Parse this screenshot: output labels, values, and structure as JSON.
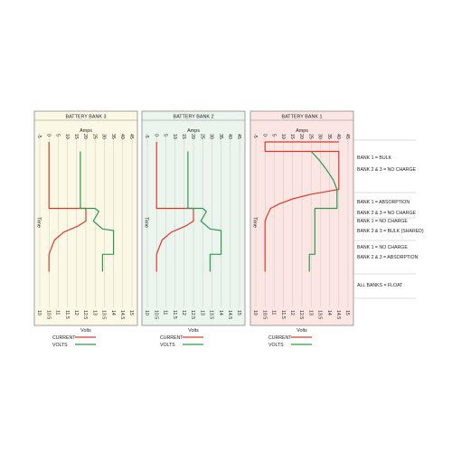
{
  "colors": {
    "current": "#d93b2b",
    "volts": "#2e9a4e",
    "bank3_bg": "#fbf9e6",
    "bank2_bg": "#ebf5ee",
    "bank1_bg": "#fbe6e4",
    "frame": "#8a8a8a",
    "grid": "#c9c9c9",
    "divider": "#bcbcbc"
  },
  "chart_data": {
    "type": "line",
    "x_top_label": "Amps",
    "x_bottom_label": "Volts",
    "y_label": "Time",
    "amps_ticks": [
      "-5",
      "0",
      "5",
      "10",
      "15",
      "20",
      "25",
      "30",
      "35",
      "40",
      "45"
    ],
    "volts_ticks": [
      "10",
      "10.5",
      "11",
      "11.5",
      "12",
      "12.5",
      "13",
      "13.5",
      "14",
      "14.5",
      "15"
    ],
    "amps_range": [
      -5,
      45
    ],
    "volts_range": [
      10,
      15
    ],
    "time_axis": "downward",
    "legend": [
      {
        "key": "current",
        "label": "CURRENT"
      },
      {
        "key": "volts",
        "label": "VOLTS"
      }
    ],
    "phases": [
      {
        "labels": [
          "BANK 1 = BULK",
          "BANK 2 & 3 = NO CHARGE"
        ]
      },
      {
        "labels": [
          "BANK 1 = ABSORPTION",
          "BANK 2 & 3 = NO CHARGE"
        ]
      },
      {
        "labels": [
          "BANK 1 = NO CHARGE",
          "BANK 2 & 3 = BULK (SHARED)"
        ]
      },
      {
        "labels": [
          "BANK 1 = NO CHARGE",
          "BANK 2 & 3 = ABSORPTION"
        ]
      },
      {
        "labels": [
          "ALL BANKS = FLOAT"
        ]
      }
    ],
    "panels": [
      {
        "title": "BATTERY BANK 3",
        "bg": "bank3_bg",
        "series": [
          {
            "key": "current",
            "points": [
              [
                0,
                0.0
              ],
              [
                0,
                0.42
              ],
              [
                20,
                0.42
              ],
              [
                20,
                0.5
              ],
              [
                16,
                0.53
              ],
              [
                8,
                0.57
              ],
              [
                3,
                0.62
              ],
              [
                1,
                0.68
              ],
              [
                0,
                0.71
              ],
              [
                0,
                0.82
              ]
            ]
          },
          {
            "key": "volts",
            "points": [
              [
                12.2,
                0.06
              ],
              [
                12.2,
                0.42
              ],
              [
                13.0,
                0.42
              ],
              [
                13.2,
                0.44
              ],
              [
                12.9,
                0.5
              ],
              [
                13.4,
                0.55
              ],
              [
                14.0,
                0.56
              ],
              [
                14.0,
                0.71
              ],
              [
                13.4,
                0.71
              ],
              [
                13.4,
                0.82
              ]
            ]
          }
        ]
      },
      {
        "title": "BATTERY BANK 2",
        "bg": "bank2_bg",
        "series": [
          {
            "key": "current",
            "points": [
              [
                0,
                0.0
              ],
              [
                0,
                0.42
              ],
              [
                20,
                0.42
              ],
              [
                20,
                0.5
              ],
              [
                16,
                0.53
              ],
              [
                8,
                0.57
              ],
              [
                3,
                0.62
              ],
              [
                1,
                0.68
              ],
              [
                0,
                0.71
              ],
              [
                0,
                0.82
              ]
            ]
          },
          {
            "key": "volts",
            "points": [
              [
                12.2,
                0.06
              ],
              [
                12.2,
                0.42
              ],
              [
                13.0,
                0.42
              ],
              [
                13.2,
                0.44
              ],
              [
                12.9,
                0.5
              ],
              [
                13.4,
                0.55
              ],
              [
                14.0,
                0.56
              ],
              [
                14.0,
                0.71
              ],
              [
                13.4,
                0.71
              ],
              [
                13.4,
                0.82
              ]
            ]
          }
        ]
      },
      {
        "title": "BATTERY BANK 1",
        "bg": "bank1_bg",
        "series": [
          {
            "key": "current",
            "points": [
              [
                40,
                0.0
              ],
              [
                0,
                0.0
              ],
              [
                0,
                0.06
              ],
              [
                40,
                0.06
              ],
              [
                40,
                0.3
              ],
              [
                35,
                0.31
              ],
              [
                25,
                0.33
              ],
              [
                15,
                0.36
              ],
              [
                8,
                0.39
              ],
              [
                3,
                0.42
              ],
              [
                1,
                0.47
              ],
              [
                0,
                0.5
              ],
              [
                0,
                0.82
              ]
            ]
          },
          {
            "key": "volts",
            "points": [
              [
                13.0,
                0.06
              ],
              [
                13.4,
                0.11
              ],
              [
                13.8,
                0.17
              ],
              [
                14.2,
                0.24
              ],
              [
                14.4,
                0.3
              ],
              [
                14.4,
                0.42
              ],
              [
                13.2,
                0.42
              ],
              [
                13.2,
                0.71
              ],
              [
                12.9,
                0.71
              ],
              [
                12.9,
                0.82
              ]
            ]
          }
        ]
      }
    ]
  }
}
